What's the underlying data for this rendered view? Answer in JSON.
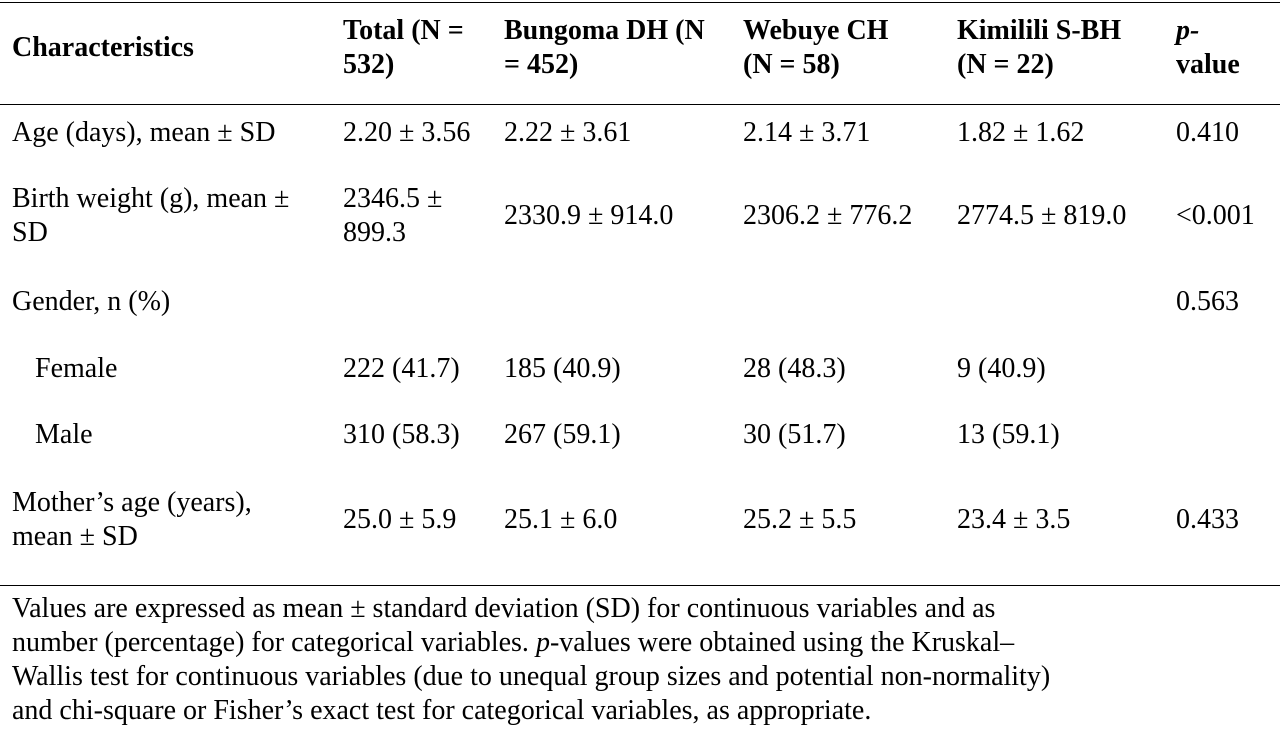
{
  "table": {
    "headers": {
      "characteristics": "Characteristics",
      "total_l1": "Total (N =",
      "total_l2": "532)",
      "bungoma_l1": "Bungoma DH (N",
      "bungoma_l2": "= 452)",
      "webuye_l1": "Webuye CH",
      "webuye_l2": "(N = 58)",
      "kimilili_l1": "Kimilili S-BH",
      "kimilili_l2": "(N = 22)",
      "pvalue_l1": "p-",
      "pvalue_l2": "value"
    },
    "rows": [
      {
        "label_l1": "Age (days), mean ± SD",
        "label_l2": "",
        "total_l1": "2.20 ± 3.56",
        "total_l2": "",
        "bungoma": "2.22 ± 3.61",
        "webuye": "2.14 ± 3.71",
        "kimilili": "1.82 ± 1.62",
        "p": "0.410"
      },
      {
        "label_l1": "Birth weight (g), mean ±",
        "label_l2": "SD",
        "total_l1": "2346.5 ±",
        "total_l2": "899.3",
        "bungoma": "2330.9 ± 914.0",
        "webuye": "2306.2 ± 776.2",
        "kimilili": "2774.5 ± 819.0",
        "p": "<0.001"
      },
      {
        "label_l1": "Gender, n (%)",
        "label_l2": "",
        "total_l1": "",
        "total_l2": "",
        "bungoma": "",
        "webuye": "",
        "kimilili": "",
        "p": "0.563"
      },
      {
        "label_l1": "Female",
        "label_l2": "",
        "total_l1": "222 (41.7)",
        "total_l2": "",
        "bungoma": "185 (40.9)",
        "webuye": "28 (48.3)",
        "kimilili": "9 (40.9)",
        "p": ""
      },
      {
        "label_l1": "Male",
        "label_l2": "",
        "total_l1": "310 (58.3)",
        "total_l2": "",
        "bungoma": "267 (59.1)",
        "webuye": "30 (51.7)",
        "kimilili": "13 (59.1)",
        "p": ""
      },
      {
        "label_l1": "Mother’s age (years),",
        "label_l2": "mean ± SD",
        "total_l1": "25.0 ± 5.9",
        "total_l2": "",
        "bungoma": "25.1 ± 6.0",
        "webuye": "25.2 ± 5.5",
        "kimilili": "23.4 ± 3.5",
        "p": "0.433"
      }
    ]
  },
  "footnote": {
    "line1": "Values are expressed as mean ± standard deviation (SD) for continuous variables and as",
    "line2_pre": "number (percentage) for categorical variables. ",
    "line2_italic": "p",
    "line2_post": "-values were obtained using the Kruskal–",
    "line3": "Wallis test for continuous variables (due to unequal group sizes and potential non-normality)",
    "line4": "and chi-square or Fisher’s exact test for categorical variables, as appropriate."
  }
}
